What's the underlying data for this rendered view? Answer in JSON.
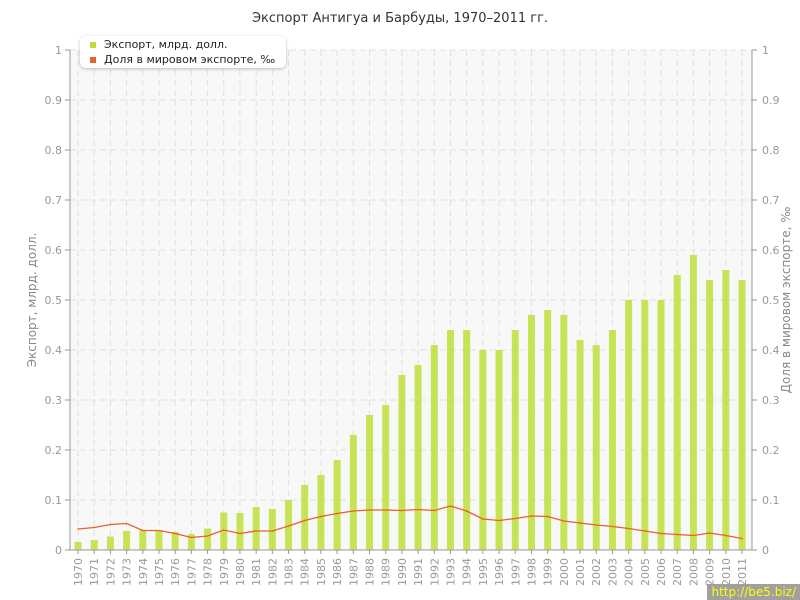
{
  "chart_data": {
    "type": "bar+line",
    "title": "Экспорт Антигуа и Барбуды, 1970–2011 гг.",
    "ylabel": "Экспорт, млрд. долл.",
    "ylabel_right": "Доля в мировом экспорте, ‰",
    "ylim": [
      0,
      1
    ],
    "ylim_right": [
      0,
      1
    ],
    "yticks": [
      "0",
      "0.1",
      "0.2",
      "0.3",
      "0.4",
      "0.5",
      "0.6",
      "0.7",
      "0.8",
      "0.9",
      "1"
    ],
    "grid": true,
    "legend": "top-left",
    "categories": [
      "1970",
      "1971",
      "1972",
      "1973",
      "1974",
      "1975",
      "1976",
      "1977",
      "1978",
      "1979",
      "1980",
      "1981",
      "1982",
      "1983",
      "1984",
      "1985",
      "1986",
      "1987",
      "1988",
      "1989",
      "1990",
      "1991",
      "1992",
      "1993",
      "1994",
      "1995",
      "1996",
      "1997",
      "1998",
      "1999",
      "2000",
      "2001",
      "2002",
      "2003",
      "2004",
      "2005",
      "2006",
      "2007",
      "2008",
      "2009",
      "2010",
      "2011"
    ],
    "series": [
      {
        "name": "Экспорт, млрд. долл.",
        "type": "bar",
        "axis": "left",
        "color": "#bedf3a",
        "values": [
          0.016,
          0.02,
          0.027,
          0.038,
          0.04,
          0.04,
          0.036,
          0.032,
          0.043,
          0.075,
          0.074,
          0.086,
          0.082,
          0.1,
          0.13,
          0.15,
          0.18,
          0.23,
          0.27,
          0.29,
          0.35,
          0.37,
          0.41,
          0.44,
          0.44,
          0.4,
          0.4,
          0.44,
          0.47,
          0.48,
          0.47,
          0.42,
          0.41,
          0.44,
          0.5,
          0.5,
          0.5,
          0.55,
          0.59,
          0.54,
          0.56,
          0.54
        ]
      },
      {
        "name": "Доля в мировом экспорте, ‰",
        "type": "line",
        "axis": "right",
        "color": "#e8602c",
        "values": [
          0.042,
          0.045,
          0.051,
          0.053,
          0.039,
          0.039,
          0.033,
          0.025,
          0.028,
          0.04,
          0.033,
          0.038,
          0.038,
          0.048,
          0.059,
          0.067,
          0.073,
          0.078,
          0.08,
          0.08,
          0.079,
          0.081,
          0.079,
          0.088,
          0.078,
          0.062,
          0.059,
          0.063,
          0.068,
          0.067,
          0.058,
          0.054,
          0.05,
          0.047,
          0.043,
          0.038,
          0.033,
          0.031,
          0.029,
          0.034,
          0.029,
          0.023
        ]
      }
    ]
  },
  "watermark": "http://be5.biz/"
}
